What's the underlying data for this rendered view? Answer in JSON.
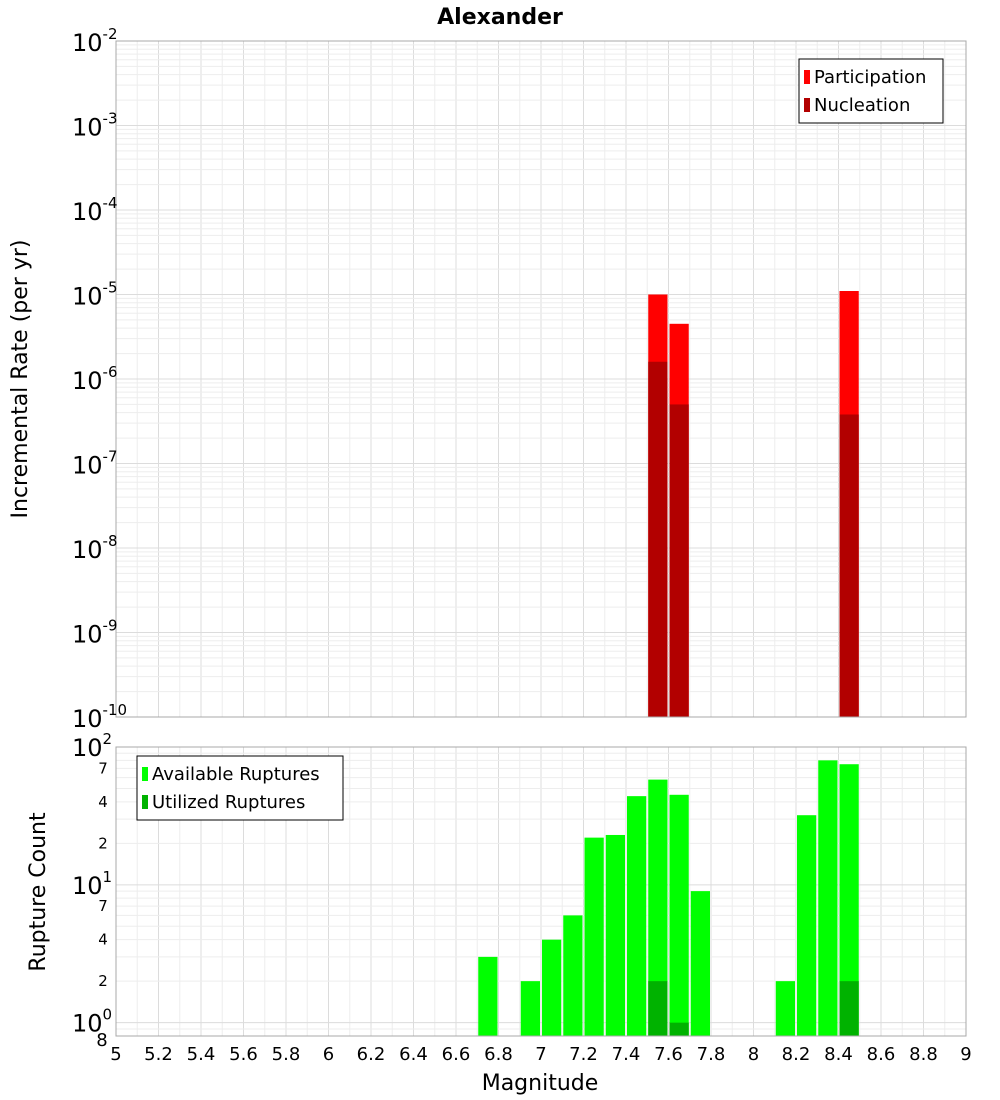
{
  "chart_data": [
    {
      "type": "bar",
      "title": "Alexander",
      "ylabel": "Incremental Rate (per yr)",
      "yscale": "log",
      "ylim": [
        1e-10,
        0.01
      ],
      "xlim": [
        5,
        9
      ],
      "bar_width": 0.1,
      "y_ticks": [
        {
          "base": "10",
          "exp": "-10",
          "value": 1e-10
        },
        {
          "base": "10",
          "exp": "-9",
          "value": 1e-09
        },
        {
          "base": "10",
          "exp": "-8",
          "value": 1e-08
        },
        {
          "base": "10",
          "exp": "-7",
          "value": 1e-07
        },
        {
          "base": "10",
          "exp": "-6",
          "value": 1e-06
        },
        {
          "base": "10",
          "exp": "-5",
          "value": 1e-05
        },
        {
          "base": "10",
          "exp": "-4",
          "value": 0.0001
        },
        {
          "base": "10",
          "exp": "-3",
          "value": 0.001
        },
        {
          "base": "10",
          "exp": "-2",
          "value": 0.01
        }
      ],
      "legend": {
        "position": "top-right",
        "entries": [
          {
            "label": "Participation",
            "color": "#ff0000"
          },
          {
            "label": "Nucleation",
            "color": "#b20000"
          }
        ]
      },
      "series": [
        {
          "name": "Participation",
          "color": "#ff0000",
          "x": [
            7.55,
            7.65,
            8.45
          ],
          "values": [
            1e-05,
            4.5e-06,
            1.1e-05
          ]
        },
        {
          "name": "Nucleation",
          "color": "#b20000",
          "x": [
            7.55,
            7.65,
            8.45
          ],
          "values": [
            1.6e-06,
            5e-07,
            3.8e-07
          ]
        }
      ]
    },
    {
      "type": "bar",
      "xlabel": "Magnitude",
      "ylabel": "Rupture Count",
      "yscale": "log",
      "ylim": [
        0.8,
        100
      ],
      "xlim": [
        5,
        9
      ],
      "bar_width": 0.1,
      "x_ticks": [
        "5",
        "5.2",
        "5.4",
        "5.6",
        "5.8",
        "6",
        "6.2",
        "6.4",
        "6.6",
        "6.8",
        "7",
        "7.2",
        "7.4",
        "7.6",
        "7.8",
        "8",
        "8.2",
        "8.4",
        "8.6",
        "8.8",
        "9"
      ],
      "y_major_ticks": [
        {
          "base": "10",
          "exp": "0",
          "value": 1
        },
        {
          "base": "10",
          "exp": "1",
          "value": 10
        },
        {
          "base": "10",
          "exp": "2",
          "value": 100
        }
      ],
      "y_minor_ticks": [
        {
          "label": "8",
          "value": 0.8
        },
        {
          "label": "2",
          "value": 2
        },
        {
          "label": "4",
          "value": 4
        },
        {
          "label": "7",
          "value": 7
        },
        {
          "label": "2",
          "value": 20
        },
        {
          "label": "4",
          "value": 40
        },
        {
          "label": "7",
          "value": 70
        }
      ],
      "legend": {
        "position": "top-left",
        "entries": [
          {
            "label": "Available Ruptures",
            "color": "#00ff00"
          },
          {
            "label": "Utilized Ruptures",
            "color": "#00b200"
          }
        ]
      },
      "series": [
        {
          "name": "Available Ruptures",
          "color": "#00ff00",
          "x": [
            6.75,
            6.95,
            7.05,
            7.15,
            7.25,
            7.35,
            7.45,
            7.55,
            7.65,
            7.75,
            8.15,
            8.25,
            8.35,
            8.45
          ],
          "values": [
            3,
            2,
            4,
            6,
            22,
            23,
            44,
            58,
            45,
            9,
            2,
            32,
            80,
            75
          ]
        },
        {
          "name": "Utilized Ruptures",
          "color": "#00b200",
          "x": [
            7.55,
            7.65,
            8.45
          ],
          "values": [
            2,
            1,
            2
          ]
        }
      ]
    }
  ]
}
